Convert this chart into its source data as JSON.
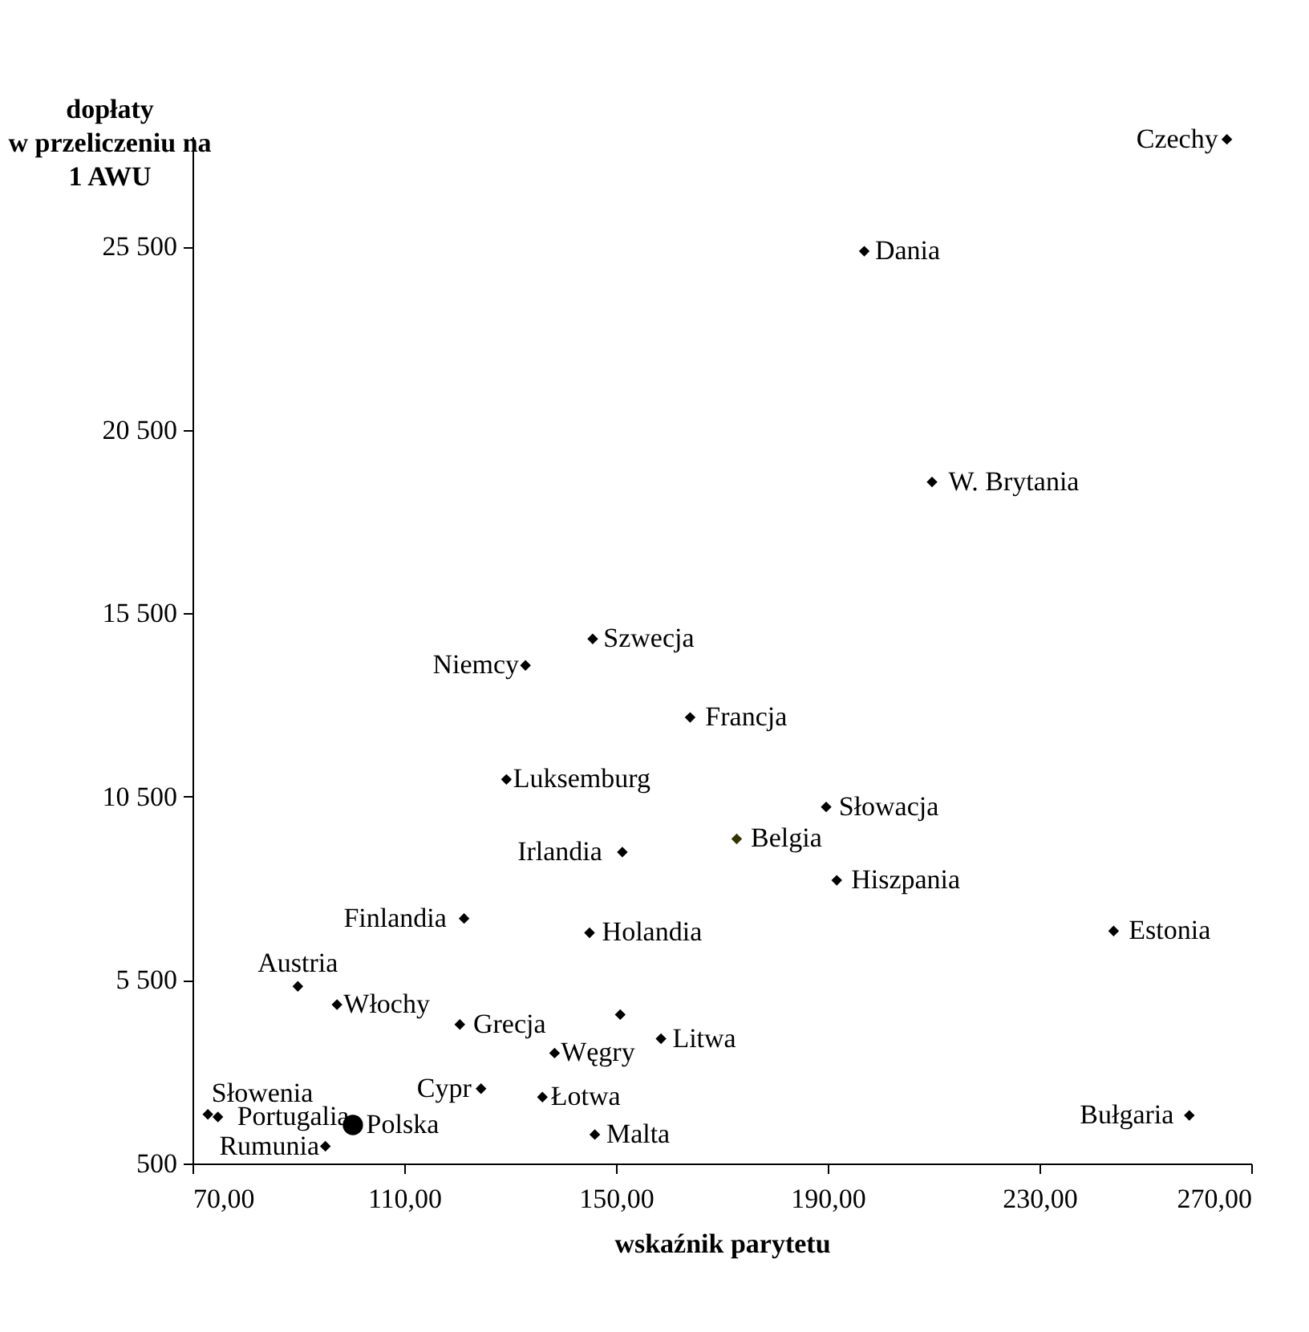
{
  "chart_data": {
    "type": "scatter",
    "xlabel": "wskaźnik parytetu",
    "ylabel": "dopłaty\nw przeliczeniu na\n1 AWU",
    "xlim": [
      70,
      270
    ],
    "ylim": [
      500,
      28500
    ],
    "xticks": [
      {
        "value": 70,
        "label": "70,00"
      },
      {
        "value": 110,
        "label": "110,00"
      },
      {
        "value": 150,
        "label": "150,00"
      },
      {
        "value": 190,
        "label": "190,00"
      },
      {
        "value": 230,
        "label": "230,00"
      },
      {
        "value": 270,
        "label": "270,00"
      }
    ],
    "yticks": [
      {
        "value": 500,
        "label": "500"
      },
      {
        "value": 5500,
        "label": "5 500"
      },
      {
        "value": 10500,
        "label": "10 500"
      },
      {
        "value": 15500,
        "label": "15 500"
      },
      {
        "value": 20500,
        "label": "20 500"
      },
      {
        "value": 25500,
        "label": "25 500"
      }
    ],
    "grid": false,
    "series": [
      {
        "marker": "diamond",
        "x": [
          265.4,
          196.9,
          209.7,
          145.6,
          132.9,
          164.0,
          129.3,
          189.7,
          172.8,
          151.2,
          191.7,
          121.3,
          145.0,
          244.0,
          89.9,
          97.3,
          120.5,
          150.8,
          158.5,
          138.4,
          124.5,
          136.1,
          146.0,
          95.1,
          72.9,
          74.8,
          258.3
        ],
        "values": [
          28420,
          25370,
          19080,
          14800,
          14080,
          12660,
          10970,
          10220,
          9350,
          8990,
          8220,
          7180,
          6790,
          6840,
          5330,
          4830,
          4290,
          4560,
          3900,
          3510,
          2540,
          2310,
          1290,
          970,
          1840,
          1770,
          1810
        ],
        "colors": [
          "#000000",
          "#000000",
          "#000000",
          "#000000",
          "#000000",
          "#000000",
          "#000000",
          "#000000",
          "#333300",
          "#000000",
          "#000000",
          "#000000",
          "#000000",
          "#000000",
          "#000000",
          "#000000",
          "#000000",
          "#000000",
          "#000000",
          "#000000",
          "#000000",
          "#000000",
          "#000000",
          "#000000",
          "#000000",
          "#000000",
          "#000000"
        ]
      },
      {
        "marker": "circle",
        "x": [
          100.3
        ],
        "values": [
          1550
        ],
        "color": "#000000"
      }
    ],
    "annotations": [
      {
        "text": "Czechy",
        "x": 265.4,
        "y": 28420
      },
      {
        "text": "Dania",
        "x": 196.9,
        "y": 25370
      },
      {
        "text": "W. Brytania",
        "x": 209.7,
        "y": 19080
      },
      {
        "text": "Szwecja",
        "x": 145.6,
        "y": 14800
      },
      {
        "text": "Niemcy",
        "x": 132.9,
        "y": 14080
      },
      {
        "text": "Francja",
        "x": 164.0,
        "y": 12660
      },
      {
        "text": "Luksemburg",
        "x": 129.3,
        "y": 10970
      },
      {
        "text": "Słowacja",
        "x": 189.7,
        "y": 10220
      },
      {
        "text": "Belgia",
        "x": 172.8,
        "y": 9350
      },
      {
        "text": "Irlandia",
        "x": 151.2,
        "y": 8990
      },
      {
        "text": "Hiszpania",
        "x": 191.7,
        "y": 8220
      },
      {
        "text": "Finlandia",
        "x": 121.3,
        "y": 7180
      },
      {
        "text": "Holandia",
        "x": 145.0,
        "y": 6790
      },
      {
        "text": "Estonia",
        "x": 244.0,
        "y": 6840
      },
      {
        "text": "Austria",
        "x": 89.9,
        "y": 5330
      },
      {
        "text": "Włochy",
        "x": 97.3,
        "y": 4830
      },
      {
        "text": "Grecja",
        "x": 120.5,
        "y": 4290
      },
      {
        "text": "Litwa",
        "x": 158.5,
        "y": 3900
      },
      {
        "text": "Węgry",
        "x": 138.4,
        "y": 3510
      },
      {
        "text": "Cypr",
        "x": 124.5,
        "y": 2540
      },
      {
        "text": "Łotwa",
        "x": 136.1,
        "y": 2310
      },
      {
        "text": "Malta",
        "x": 146.0,
        "y": 1290
      },
      {
        "text": "Polska",
        "x": 100.3,
        "y": 1550
      },
      {
        "text": "Rumunia",
        "x": 95.1,
        "y": 970
      },
      {
        "text": "Słowenia",
        "x": 72.9,
        "y": 1840
      },
      {
        "text": "Portugalia",
        "x": 74.8,
        "y": 1770
      },
      {
        "text": "Bułgaria",
        "x": 258.3,
        "y": 1810
      }
    ]
  }
}
